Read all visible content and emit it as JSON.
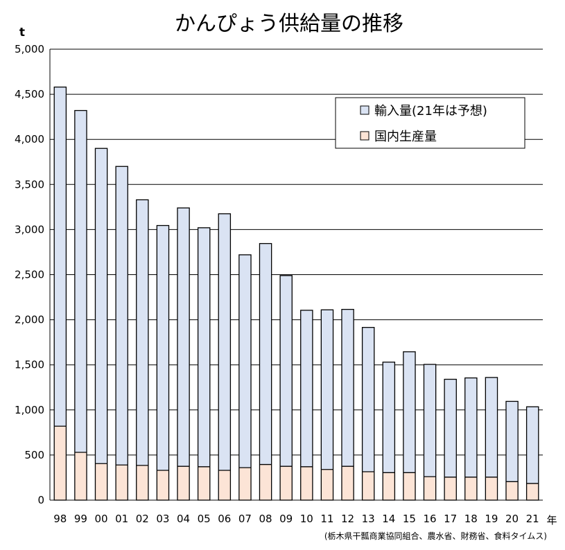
{
  "chart_data": {
    "type": "bar",
    "stacked": true,
    "title": "かんぴょう供給量の推移",
    "ylabel": "t",
    "xlabel": "年",
    "source": "(栃木県干瓢商業協同組合、農水省、財務省、食料タイムス)",
    "ylim": [
      0,
      5000
    ],
    "yticks": [
      0,
      500,
      1000,
      1500,
      2000,
      2500,
      3000,
      3500,
      4000,
      4500,
      5000
    ],
    "ytick_labels": [
      "0",
      "500",
      "1,000",
      "1,500",
      "2,000",
      "2,500",
      "3,000",
      "3,500",
      "4,000",
      "4,500",
      "5,000"
    ],
    "grid": true,
    "legend_position": "upper-right",
    "categories": [
      "98",
      "99",
      "00",
      "01",
      "02",
      "03",
      "04",
      "05",
      "06",
      "07",
      "08",
      "09",
      "10",
      "11",
      "12",
      "13",
      "14",
      "15",
      "16",
      "17",
      "18",
      "19",
      "20",
      "21"
    ],
    "series": [
      {
        "name": "国内生産量",
        "color": "#FCE4D6",
        "values": [
          820,
          530,
          405,
          390,
          385,
          330,
          375,
          370,
          330,
          360,
          395,
          375,
          370,
          340,
          375,
          315,
          305,
          305,
          260,
          255,
          255,
          255,
          205,
          185
        ]
      },
      {
        "name": "輸入量(21年は予想)",
        "color": "#DAE3F3",
        "values": [
          3760,
          3790,
          3495,
          3310,
          2945,
          2715,
          2865,
          2650,
          2845,
          2360,
          2450,
          2115,
          1735,
          1770,
          1740,
          1600,
          1225,
          1340,
          1245,
          1085,
          1100,
          1105,
          890,
          850
        ]
      }
    ]
  }
}
